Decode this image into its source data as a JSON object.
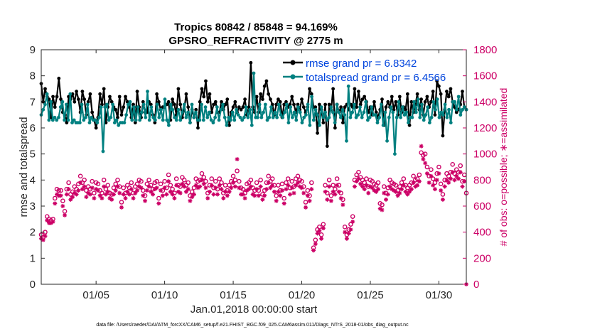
{
  "chart_data": {
    "type": "line",
    "title": "Tropics 80842 / 85848 = 94.169%",
    "subtitle": "GPSRO_REFRACTIVITY @ 2775 m",
    "xlabel": "Jan.01,2018 00:00:00 start",
    "ylabel": "rmse and totalspread",
    "y2label": "# of obs: o=possible; ∗=assimilated",
    "footnote": "data file: /Users/raeder/DAI/ATM_forcXX/CAM6_setup/f.e21.FHIST_BGC.f09_025.CAM6assim.011/Diags_NTrS_2018-01/obs_diag_output.nc",
    "xlim": [
      1,
      32
    ],
    "ylim": [
      0,
      9
    ],
    "y2lim": [
      0,
      1800
    ],
    "x_ticks": [
      {
        "value": 5,
        "label": "01/05"
      },
      {
        "value": 10,
        "label": "01/10"
      },
      {
        "value": 15,
        "label": "01/15"
      },
      {
        "value": 20,
        "label": "01/20"
      },
      {
        "value": 25,
        "label": "01/25"
      },
      {
        "value": 30,
        "label": "01/30"
      }
    ],
    "y_ticks": [
      "0",
      "1",
      "2",
      "3",
      "4",
      "5",
      "6",
      "7",
      "8",
      "9"
    ],
    "y2_ticks": [
      "0",
      "200",
      "400",
      "600",
      "800",
      "1000",
      "1200",
      "1400",
      "1600",
      "1800"
    ],
    "legend": [
      {
        "name": "rmse grand pr = 6.8342",
        "color": "#000000"
      },
      {
        "name": "totalspread grand pr = 6.4566",
        "color": "#008080"
      }
    ],
    "series": [
      {
        "name": "rmse",
        "color": "#000000",
        "axis": "left",
        "values": [
          7.7,
          7.0,
          7.5,
          7.2,
          7.1,
          6.4,
          7.2,
          6.8,
          7.2,
          7.9,
          7.1,
          6.6,
          6.5,
          6.2,
          7.2,
          7.1,
          7.3,
          7.0,
          7.4,
          7.1,
          6.6,
          7.4,
          7.1,
          6.5,
          7.0,
          7.3,
          6.6,
          6.3,
          6.0,
          6.4,
          7.3,
          6.9,
          7.5,
          6.2,
          6.8,
          7.2,
          7.0,
          6.8,
          6.7,
          6.4,
          7.2,
          6.5,
          6.8,
          7.2,
          7.0,
          6.8,
          6.4,
          6.9,
          6.2,
          7.4,
          6.8,
          6.4,
          7.0,
          6.6,
          6.6,
          7.0,
          6.9,
          6.5,
          6.2,
          7.3,
          7.0,
          6.7,
          6.8,
          6.8,
          6.9,
          7.0,
          6.3,
          7.1,
          6.9,
          6.5,
          7.5,
          6.9,
          6.4,
          6.7,
          7.3,
          6.8,
          6.2,
          6.7,
          6.4,
          6.7,
          6.0,
          7.0,
          7.5,
          7.2,
          7.8,
          7.0,
          7.3,
          6.6,
          6.9,
          7.0,
          6.6,
          6.6,
          7.0,
          6.7,
          6.9,
          7.1,
          6.1,
          6.6,
          6.8,
          7.0,
          6.6,
          6.8,
          6.7,
          6.8,
          7.1,
          6.5,
          6.8,
          8.5,
          6.8,
          6.6,
          7.2,
          6.6,
          7.3,
          7.1,
          7.6,
          7.8,
          7.3,
          7.1,
          6.9,
          6.5,
          6.9,
          7.1,
          7.0,
          6.4,
          6.9,
          7.0,
          6.8,
          6.9,
          7.2,
          6.9,
          6.6,
          6.9,
          6.7,
          7.1,
          6.8,
          6.6,
          6.8,
          7.5,
          7.3,
          6.8,
          6.8,
          5.8,
          6.9,
          6.7,
          6.2,
          6.9,
          5.3,
          6.9,
          6.7,
          7.5,
          6.0,
          6.9,
          6.6,
          6.8,
          6.2,
          6.8,
          6.9,
          6.7,
          6.9,
          6.8,
          7.5,
          6.8,
          7.4,
          6.9,
          7.1,
          7.2,
          7.0,
          6.6,
          6.8,
          6.5,
          7.0,
          6.6,
          6.4,
          6.7,
          7.1,
          6.1,
          6.8,
          7.0,
          6.8,
          7.2,
          6.7,
          7.0,
          6.5,
          7.2,
          6.6,
          6.8,
          6.7,
          7.3,
          6.1,
          7.0,
          6.6,
          6.9,
          7.3,
          6.7,
          7.1,
          6.5,
          7.0,
          7.2,
          6.8,
          7.0,
          7.4,
          6.5,
          7.8,
          7.6,
          7.3,
          5.7,
          6.7,
          7.4,
          7.2,
          7.5,
          7.0,
          6.8,
          6.6,
          6.7,
          6.9,
          7.4,
          6.8,
          6.7
        ]
      },
      {
        "name": "totalspread",
        "color": "#008080",
        "axis": "left",
        "values": [
          6.5,
          6.7,
          6.9,
          7.3,
          6.3,
          7.0,
          6.3,
          6.4,
          6.3,
          6.4,
          6.8,
          7.0,
          6.3,
          6.9,
          6.3,
          7.3,
          6.2,
          6.3,
          6.2,
          6.2,
          6.2,
          6.9,
          6.3,
          6.4,
          6.9,
          6.2,
          6.4,
          6.3,
          6.3,
          6.2,
          6.4,
          6.8,
          5.1,
          6.8,
          6.9,
          6.3,
          6.4,
          6.9,
          6.2,
          6.3,
          6.1,
          6.2,
          6.2,
          6.2,
          6.5,
          6.9,
          7.0,
          6.3,
          6.8,
          6.3,
          6.8,
          6.3,
          6.6,
          6.9,
          6.4,
          7.4,
          6.3,
          6.8,
          6.4,
          6.3,
          6.9,
          6.4,
          6.7,
          6.3,
          7.1,
          6.3,
          6.1,
          6.9,
          6.7,
          6.4,
          6.3,
          6.7,
          6.3,
          6.6,
          6.9,
          6.4,
          6.6,
          6.2,
          6.9,
          6.4,
          6.6,
          6.3,
          6.3,
          6.9,
          6.3,
          6.8,
          6.4,
          6.6,
          6.3,
          6.2,
          6.4,
          6.8,
          6.3,
          6.7,
          6.9,
          6.4,
          6.1,
          6.4,
          6.3,
          6.6,
          6.3,
          6.7,
          6.5,
          6.4,
          6.3,
          6.4,
          6.8,
          6.4,
          6.7,
          6.1,
          8.1,
          6.4,
          6.4,
          6.9,
          6.4,
          6.6,
          6.9,
          6.3,
          6.4,
          6.8,
          6.4,
          6.6,
          6.4,
          6.9,
          6.5,
          6.4,
          6.6,
          6.9,
          6.2,
          6.8,
          6.4,
          6.6,
          6.3,
          6.8,
          6.6,
          6.2,
          6.4,
          6.5,
          6.9,
          6.1,
          7.2,
          6.3,
          6.7,
          6.5,
          6.1,
          6.8,
          6.4,
          6.6,
          6.3,
          6.4,
          6.8,
          6.6,
          6.2,
          6.9,
          6.6,
          6.4,
          6.7,
          6.5,
          5.5,
          7.6,
          6.4,
          6.6,
          6.9,
          6.4,
          6.5,
          6.8,
          6.4,
          6.6,
          7.0,
          6.3,
          6.4,
          6.8,
          6.5,
          6.5,
          6.2,
          6.4,
          6.9,
          6.1,
          6.6,
          5.5,
          6.4,
          6.8,
          6.6,
          5.0,
          6.4,
          7.0,
          6.4,
          6.8,
          6.5,
          6.6,
          6.2,
          6.4,
          6.4,
          7.0,
          6.6,
          7.1,
          6.4,
          6.9,
          6.3,
          6.5,
          6.8,
          6.2,
          6.4,
          7.0,
          6.7,
          7.1,
          6.4,
          6.6,
          6.5,
          6.9,
          6.4,
          6.7,
          6.2,
          7.0,
          7.0,
          6.7,
          7.2,
          6.5,
          6.7,
          6.8,
          6.7
        ]
      },
      {
        "name": "possible",
        "color": "#cc0066",
        "axis": "right",
        "marker": "o",
        "values": [
          380,
          360,
          400,
          520,
          500,
          490,
          500,
          660,
          730,
          720,
          720,
          640,
          560,
          730,
          780,
          690,
          710,
          750,
          730,
          770,
          830,
          780,
          800,
          720,
          750,
          730,
          790,
          700,
          780,
          770,
          720,
          700,
          800,
          730,
          760,
          700,
          690,
          740,
          770,
          800,
          750,
          630,
          740,
          700,
          760,
          740,
          780,
          700,
          750,
          770,
          800,
          790,
          720,
          680,
          770,
          800,
          760,
          730,
          780,
          790,
          660,
          770,
          720,
          790,
          740,
          840,
          760,
          730,
          700,
          810,
          760,
          750,
          820,
          800,
          760,
          780,
          680,
          710,
          740,
          810,
          790,
          800,
          850,
          820,
          790,
          700,
          760,
          810,
          740,
          790,
          730,
          810,
          780,
          700,
          760,
          720,
          760,
          790,
          830,
          800,
          870,
          790,
          740,
          730,
          700,
          770,
          780,
          800,
          740,
          720,
          780,
          720,
          800,
          690,
          720,
          780,
          830,
          790,
          810,
          760,
          680,
          760,
          720,
          770,
          660,
          780,
          810,
          740,
          790,
          750,
          810,
          830,
          800,
          790,
          750,
          630,
          720,
          680,
          780,
          280,
          340,
          420,
          440,
          380,
          460,
          760,
          700,
          800,
          680,
          760,
          730,
          810,
          760,
          700,
          650,
          440,
          380,
          420,
          460,
          520,
          800,
          840,
          860,
          820,
          800,
          780,
          810,
          750,
          800,
          790,
          770,
          760,
          780,
          620,
          610,
          750,
          700,
          740,
          800,
          780,
          770,
          760,
          720,
          750,
          780,
          810,
          760,
          740,
          760,
          780,
          830,
          800,
          810,
          840,
          1010,
          990,
          1000,
          900,
          830,
          880,
          810,
          780,
          850,
          900,
          770,
          690,
          800,
          850,
          830,
          860,
          920,
          850,
          880,
          860,
          910,
          790,
          840,
          700
        ]
      },
      {
        "name": "assimilated",
        "color": "#cc0066",
        "axis": "right",
        "marker": "*",
        "values": [
          350,
          340,
          370,
          490,
          470,
          470,
          480,
          620,
          690,
          680,
          680,
          600,
          530,
          690,
          730,
          650,
          670,
          700,
          690,
          720,
          780,
          730,
          750,
          670,
          700,
          690,
          740,
          660,
          730,
          720,
          680,
          660,
          750,
          690,
          710,
          660,
          650,
          690,
          720,
          750,
          700,
          590,
          690,
          660,
          710,
          690,
          730,
          660,
          700,
          720,
          750,
          740,
          680,
          640,
          720,
          750,
          710,
          690,
          730,
          740,
          620,
          720,
          680,
          740,
          690,
          790,
          710,
          690,
          660,
          760,
          710,
          700,
          770,
          750,
          710,
          730,
          640,
          670,
          690,
          760,
          740,
          750,
          800,
          770,
          740,
          660,
          710,
          760,
          690,
          740,
          690,
          760,
          730,
          660,
          710,
          680,
          710,
          740,
          780,
          750,
          960,
          740,
          690,
          690,
          660,
          720,
          730,
          750,
          690,
          680,
          730,
          680,
          750,
          650,
          680,
          730,
          780,
          740,
          760,
          710,
          640,
          710,
          680,
          720,
          620,
          730,
          760,
          690,
          740,
          700,
          760,
          780,
          750,
          740,
          700,
          590,
          680,
          640,
          730,
          260,
          310,
          390,
          410,
          350,
          430,
          710,
          650,
          750,
          640,
          710,
          690,
          760,
          710,
          660,
          610,
          400,
          350,
          390,
          420,
          480,
          750,
          790,
          810,
          770,
          750,
          730,
          760,
          700,
          750,
          740,
          720,
          710,
          730,
          580,
          570,
          700,
          650,
          690,
          750,
          730,
          720,
          710,
          680,
          700,
          730,
          760,
          710,
          690,
          710,
          730,
          780,
          750,
          760,
          790,
          1060,
          960,
          930,
          850,
          780,
          830,
          760,
          730,
          800,
          850,
          720,
          650,
          750,
          800,
          780,
          810,
          860,
          800,
          830,
          810,
          860,
          750,
          790,
          0
        ]
      }
    ]
  }
}
